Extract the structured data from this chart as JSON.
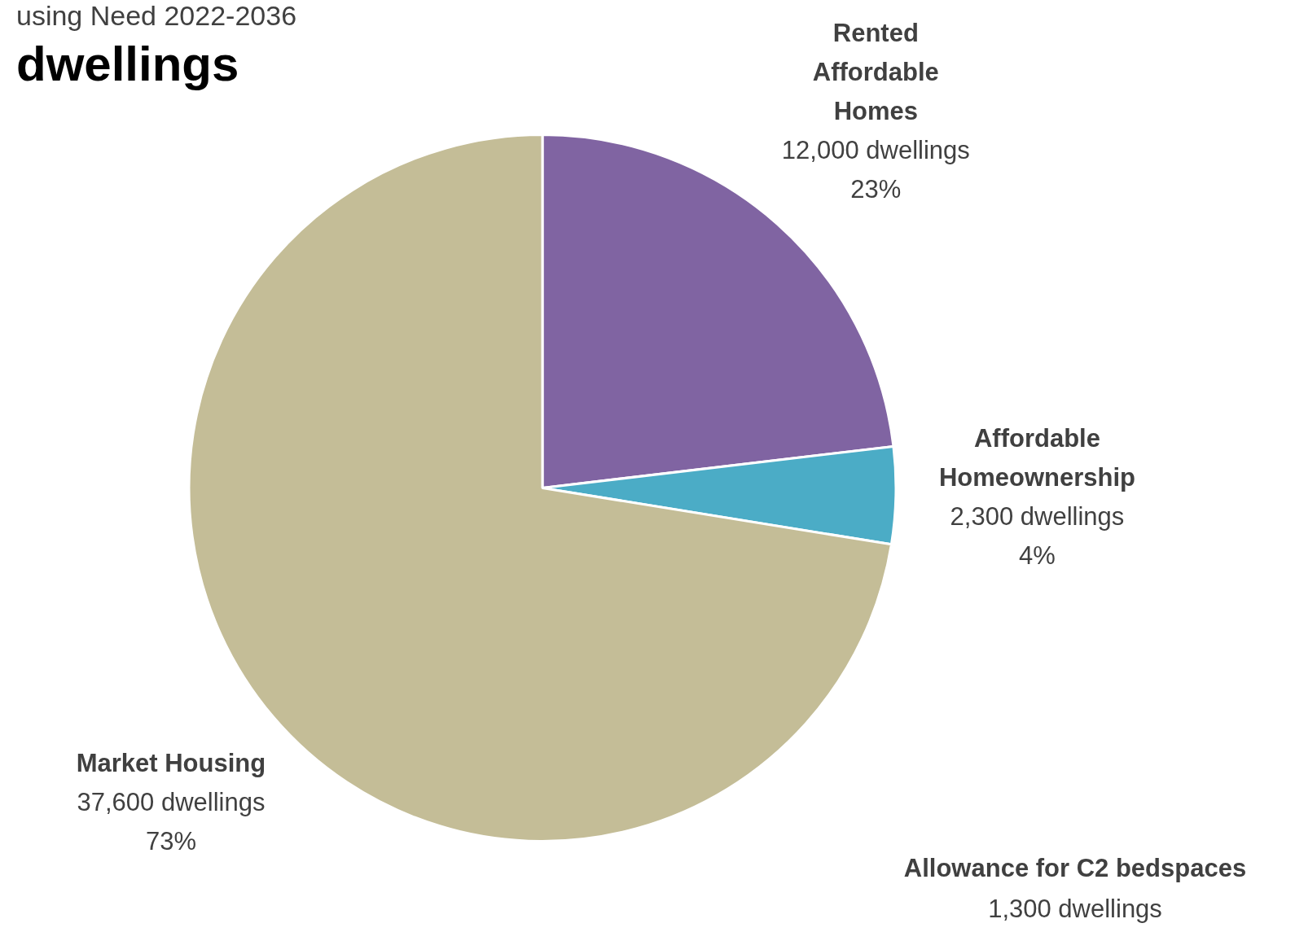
{
  "chart_data": {
    "type": "pie",
    "title": "dwellings",
    "subtitle": "using Need 2022-2036",
    "categories": [
      "Rented Affordable Homes",
      "Affordable Homeownership",
      "Market Housing"
    ],
    "values": [
      12000,
      2300,
      37600
    ],
    "colors": [
      "#8064a2",
      "#4bacc6",
      "#c4bd97"
    ],
    "value_labels": [
      "12,000 dwellings\n23%",
      "2,300 dwellings\n4%",
      "37,600 dwellings\n73%"
    ],
    "annotations": [
      "Allowance for C2 bedspaces\n1,300 dwellings"
    ],
    "legend": false
  }
}
